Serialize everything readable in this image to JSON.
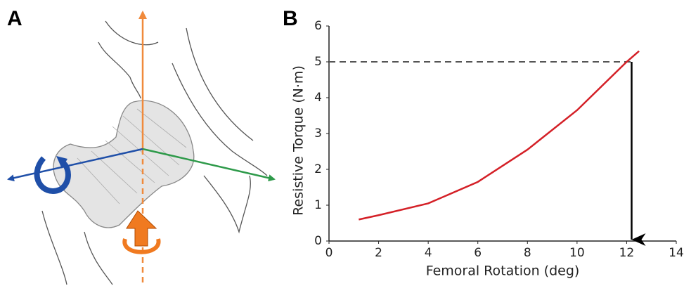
{
  "panels": [
    "A",
    "B"
  ],
  "chart_data": {
    "type": "line",
    "xlabel": "Femoral Rotation (deg)",
    "ylabel": "Resistive Torque (N·m)",
    "x": [
      1.2,
      2,
      4,
      6,
      8,
      10,
      12,
      12.5
    ],
    "values": [
      0.6,
      0.72,
      1.05,
      1.65,
      2.55,
      3.65,
      5.0,
      5.3
    ],
    "color": "#d42027",
    "xlim": [
      0,
      14
    ],
    "xticks": [
      0,
      2,
      4,
      6,
      8,
      10,
      12,
      14
    ],
    "ylim": [
      0,
      6
    ],
    "yticks": [
      0,
      1,
      2,
      3,
      4,
      5,
      6
    ],
    "reference": {
      "x": 12.2,
      "y": 5
    }
  }
}
